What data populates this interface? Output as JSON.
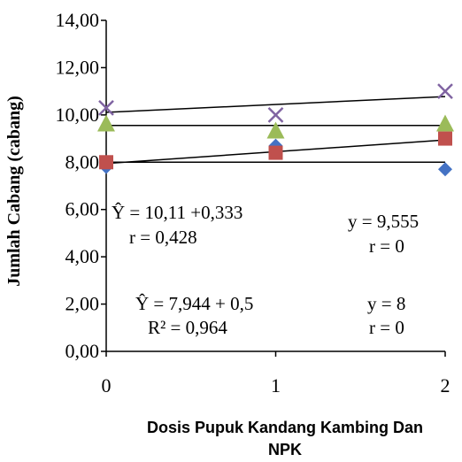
{
  "chart_data": {
    "type": "scatter",
    "xlabel": [
      "Dosis Pupuk Kandang Kambing Dan",
      "NPK"
    ],
    "ylabel": "Jumlah Cabang (cabang)",
    "x_ticks": [
      "0",
      "1",
      "2"
    ],
    "y_ticks": [
      "0,00",
      "2,00",
      "4,00",
      "6,00",
      "8,00",
      "10,00",
      "12,00",
      "14,00"
    ],
    "xlim": [
      0,
      2
    ],
    "ylim": [
      0,
      14
    ],
    "grid": false,
    "series": [
      {
        "marker": "diamond",
        "color": "#4472c4",
        "x": [
          0,
          1,
          2
        ],
        "y": [
          7.8,
          8.7,
          7.7
        ]
      },
      {
        "marker": "square",
        "color": "#c0504d",
        "x": [
          0,
          1,
          2
        ],
        "y": [
          8.0,
          8.4,
          9.0
        ]
      },
      {
        "marker": "triangle",
        "color": "#9bbb59",
        "x": [
          0,
          1,
          2
        ],
        "y": [
          9.6,
          9.3,
          9.6
        ]
      },
      {
        "marker": "cross",
        "color": "#8064a2",
        "x": [
          0,
          1,
          2
        ],
        "y": [
          10.3,
          10.0,
          11.0
        ]
      }
    ],
    "trendlines": [
      {
        "x": [
          0,
          2
        ],
        "y": [
          10.11,
          10.776
        ]
      },
      {
        "x": [
          0,
          2
        ],
        "y": [
          9.555,
          9.555
        ]
      },
      {
        "x": [
          0,
          2
        ],
        "y": [
          7.944,
          8.944
        ]
      },
      {
        "x": [
          0,
          2
        ],
        "y": [
          8.0,
          8.0
        ]
      }
    ],
    "annotations": [
      {
        "id": "a1",
        "text": "Ŷ = 10,11 +0,333"
      },
      {
        "id": "a2",
        "text": "r = 0,428"
      },
      {
        "id": "a3",
        "text": "y = 9,555"
      },
      {
        "id": "a4",
        "text": "r = 0"
      },
      {
        "id": "a5",
        "text": "Ŷ = 7,944 + 0,5"
      },
      {
        "id": "a6",
        "text": "R² = 0,964"
      },
      {
        "id": "a7",
        "text": "y = 8"
      },
      {
        "id": "a8",
        "text": "r = 0"
      }
    ]
  }
}
